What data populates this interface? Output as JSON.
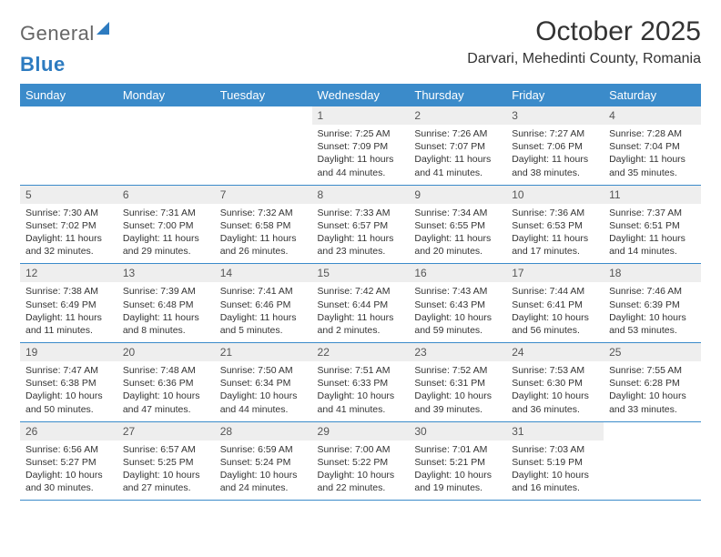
{
  "logo": {
    "part1": "General",
    "part2": "Blue"
  },
  "title": "October 2025",
  "location": "Darvari, Mehedinti County, Romania",
  "colors": {
    "header_bg": "#3b8bca",
    "header_text": "#ffffff",
    "daynum_bg": "#eeeeee",
    "rule": "#3b8bca",
    "brand_blue": "#2d7bc0"
  },
  "weekdays": [
    "Sunday",
    "Monday",
    "Tuesday",
    "Wednesday",
    "Thursday",
    "Friday",
    "Saturday"
  ],
  "cells": [
    {
      "e": true
    },
    {
      "e": true
    },
    {
      "e": true
    },
    {
      "n": "1",
      "r": "7:25 AM",
      "s": "7:09 PM",
      "d": "11 hours and 44 minutes."
    },
    {
      "n": "2",
      "r": "7:26 AM",
      "s": "7:07 PM",
      "d": "11 hours and 41 minutes."
    },
    {
      "n": "3",
      "r": "7:27 AM",
      "s": "7:06 PM",
      "d": "11 hours and 38 minutes."
    },
    {
      "n": "4",
      "r": "7:28 AM",
      "s": "7:04 PM",
      "d": "11 hours and 35 minutes."
    },
    {
      "n": "5",
      "r": "7:30 AM",
      "s": "7:02 PM",
      "d": "11 hours and 32 minutes."
    },
    {
      "n": "6",
      "r": "7:31 AM",
      "s": "7:00 PM",
      "d": "11 hours and 29 minutes."
    },
    {
      "n": "7",
      "r": "7:32 AM",
      "s": "6:58 PM",
      "d": "11 hours and 26 minutes."
    },
    {
      "n": "8",
      "r": "7:33 AM",
      "s": "6:57 PM",
      "d": "11 hours and 23 minutes."
    },
    {
      "n": "9",
      "r": "7:34 AM",
      "s": "6:55 PM",
      "d": "11 hours and 20 minutes."
    },
    {
      "n": "10",
      "r": "7:36 AM",
      "s": "6:53 PM",
      "d": "11 hours and 17 minutes."
    },
    {
      "n": "11",
      "r": "7:37 AM",
      "s": "6:51 PM",
      "d": "11 hours and 14 minutes."
    },
    {
      "n": "12",
      "r": "7:38 AM",
      "s": "6:49 PM",
      "d": "11 hours and 11 minutes."
    },
    {
      "n": "13",
      "r": "7:39 AM",
      "s": "6:48 PM",
      "d": "11 hours and 8 minutes."
    },
    {
      "n": "14",
      "r": "7:41 AM",
      "s": "6:46 PM",
      "d": "11 hours and 5 minutes."
    },
    {
      "n": "15",
      "r": "7:42 AM",
      "s": "6:44 PM",
      "d": "11 hours and 2 minutes."
    },
    {
      "n": "16",
      "r": "7:43 AM",
      "s": "6:43 PM",
      "d": "10 hours and 59 minutes."
    },
    {
      "n": "17",
      "r": "7:44 AM",
      "s": "6:41 PM",
      "d": "10 hours and 56 minutes."
    },
    {
      "n": "18",
      "r": "7:46 AM",
      "s": "6:39 PM",
      "d": "10 hours and 53 minutes."
    },
    {
      "n": "19",
      "r": "7:47 AM",
      "s": "6:38 PM",
      "d": "10 hours and 50 minutes."
    },
    {
      "n": "20",
      "r": "7:48 AM",
      "s": "6:36 PM",
      "d": "10 hours and 47 minutes."
    },
    {
      "n": "21",
      "r": "7:50 AM",
      "s": "6:34 PM",
      "d": "10 hours and 44 minutes."
    },
    {
      "n": "22",
      "r": "7:51 AM",
      "s": "6:33 PM",
      "d": "10 hours and 41 minutes."
    },
    {
      "n": "23",
      "r": "7:52 AM",
      "s": "6:31 PM",
      "d": "10 hours and 39 minutes."
    },
    {
      "n": "24",
      "r": "7:53 AM",
      "s": "6:30 PM",
      "d": "10 hours and 36 minutes."
    },
    {
      "n": "25",
      "r": "7:55 AM",
      "s": "6:28 PM",
      "d": "10 hours and 33 minutes."
    },
    {
      "n": "26",
      "r": "6:56 AM",
      "s": "5:27 PM",
      "d": "10 hours and 30 minutes."
    },
    {
      "n": "27",
      "r": "6:57 AM",
      "s": "5:25 PM",
      "d": "10 hours and 27 minutes."
    },
    {
      "n": "28",
      "r": "6:59 AM",
      "s": "5:24 PM",
      "d": "10 hours and 24 minutes."
    },
    {
      "n": "29",
      "r": "7:00 AM",
      "s": "5:22 PM",
      "d": "10 hours and 22 minutes."
    },
    {
      "n": "30",
      "r": "7:01 AM",
      "s": "5:21 PM",
      "d": "10 hours and 19 minutes."
    },
    {
      "n": "31",
      "r": "7:03 AM",
      "s": "5:19 PM",
      "d": "10 hours and 16 minutes."
    },
    {
      "e": true
    }
  ],
  "labels": {
    "sunrise": "Sunrise:",
    "sunset": "Sunset:",
    "daylight": "Daylight:"
  }
}
